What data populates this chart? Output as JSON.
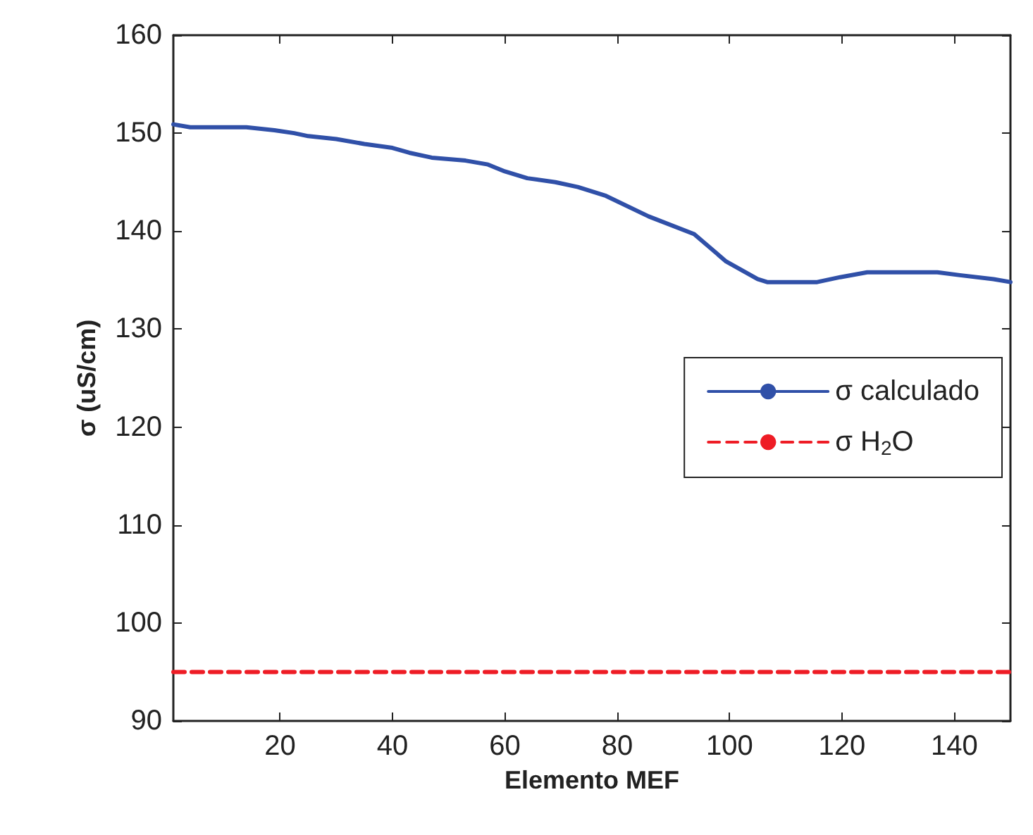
{
  "chart_data": {
    "type": "line",
    "xlabel": "Elemento MEF",
    "ylabel": "σ (uS/cm)",
    "xlim": [
      1,
      150
    ],
    "ylim": [
      90,
      160
    ],
    "xticks": [
      20,
      40,
      60,
      80,
      100,
      120,
      140
    ],
    "yticks": [
      90,
      100,
      110,
      120,
      130,
      140,
      150,
      160
    ],
    "series": [
      {
        "name": "σ calculado",
        "color": "#3050a8",
        "line_style": "solid",
        "x": [
          1,
          4,
          14,
          19,
          22.5,
          25,
          30,
          35,
          40,
          43,
          47,
          53,
          57,
          60,
          64,
          69,
          73,
          78,
          85.6,
          93.7,
          99.4,
          105,
          106.7,
          115.6,
          119.7,
          124.5,
          137,
          141,
          147,
          150
        ],
        "values": [
          150.9,
          150.6,
          150.6,
          150.3,
          150.0,
          149.7,
          149.4,
          148.9,
          148.5,
          148.0,
          147.5,
          147.2,
          146.8,
          146.1,
          145.4,
          145.0,
          144.5,
          143.6,
          141.5,
          139.7,
          136.9,
          135.1,
          134.8,
          134.8,
          135.3,
          135.8,
          135.8,
          135.5,
          135.1,
          134.8
        ]
      },
      {
        "name": "σ H$_{2}$O",
        "color": "#ee1c25",
        "line_style": "dashed",
        "x": [
          1,
          150
        ],
        "values": [
          95,
          95
        ]
      }
    ],
    "legend": "right",
    "grid": false,
    "marker": "none"
  }
}
